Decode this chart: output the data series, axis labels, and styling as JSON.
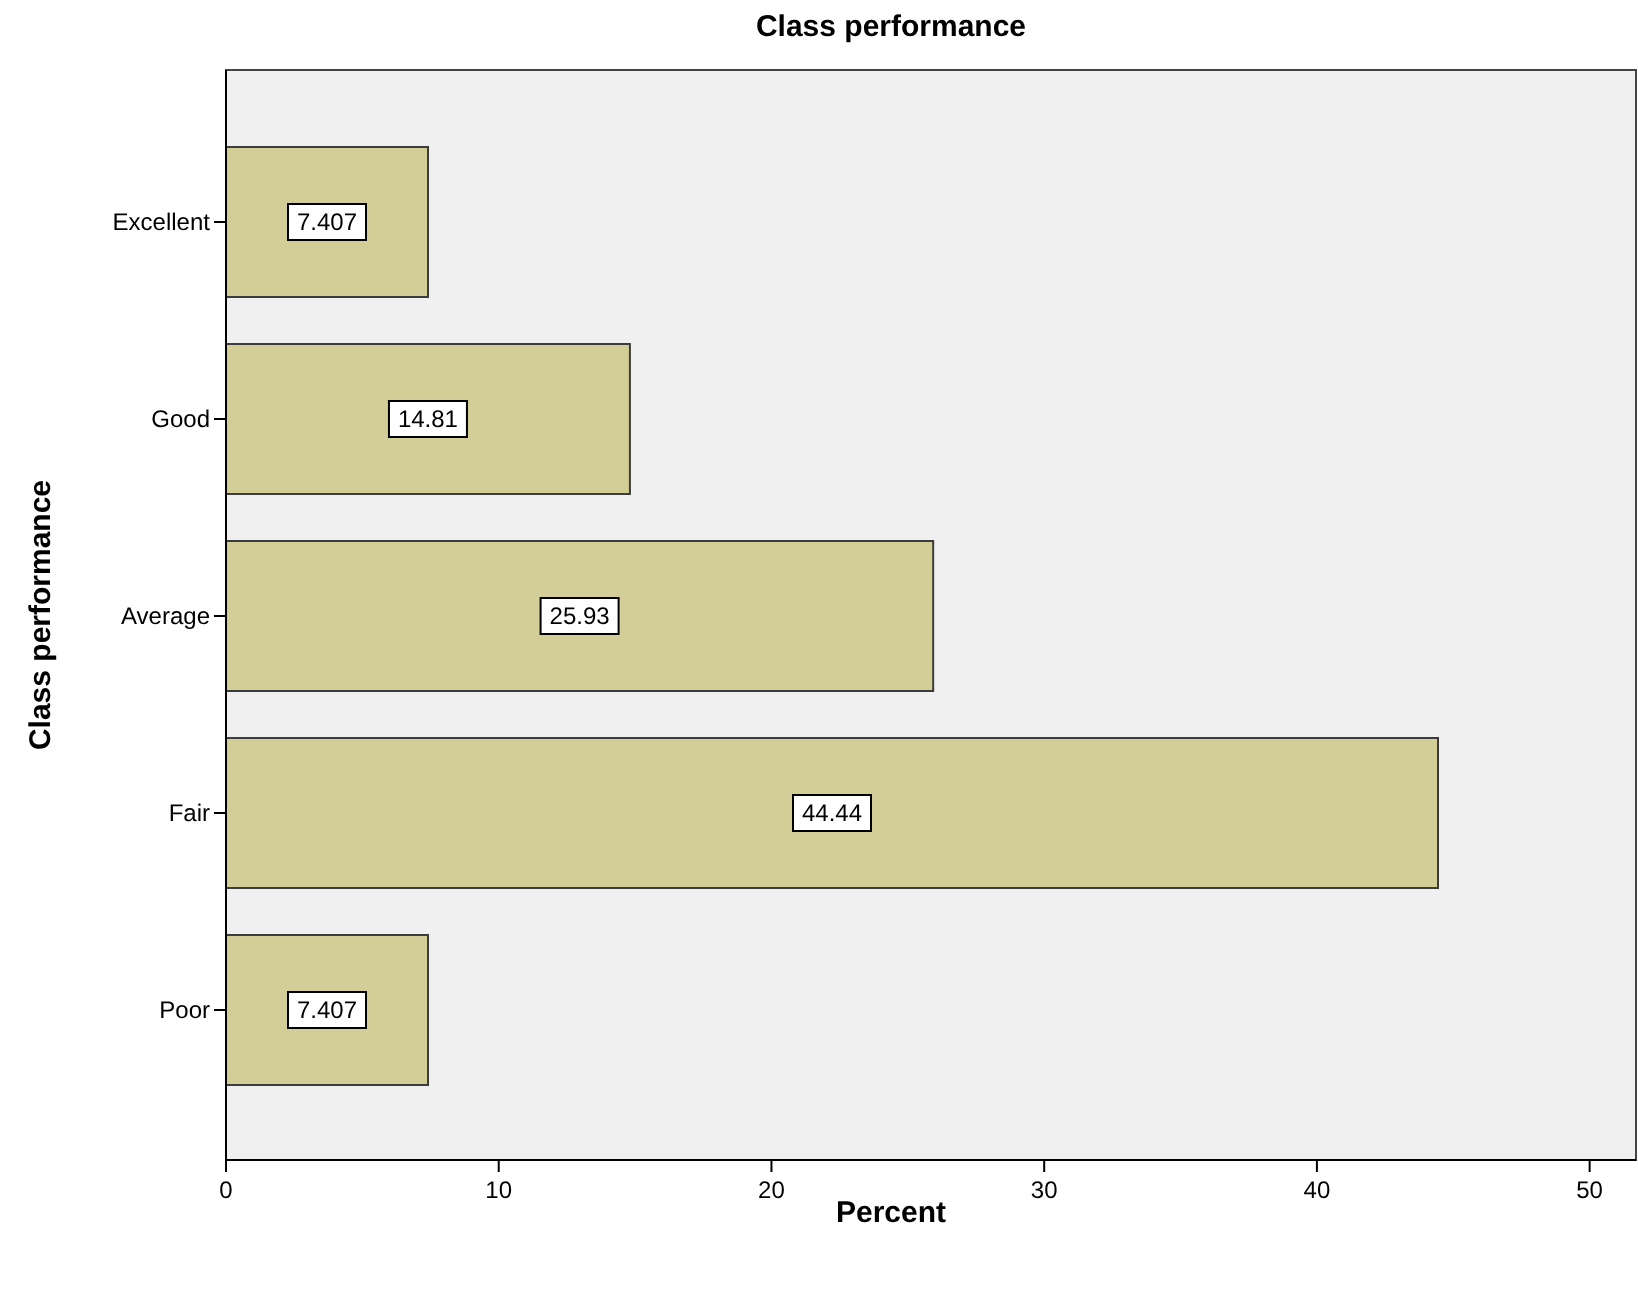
{
  "chart_data": {
    "type": "bar",
    "orientation": "horizontal",
    "title": "Class performance",
    "xlabel": "Percent",
    "ylabel": "Class performance",
    "categories": [
      "Excellent",
      "Good",
      "Average",
      "Fair",
      "Poor"
    ],
    "values": [
      7.407,
      14.81,
      25.93,
      44.44,
      7.407
    ],
    "color": "#d3ce97",
    "xlim": [
      0,
      51.7
    ],
    "xticks": [
      0,
      10,
      20,
      30,
      40,
      50
    ],
    "data_labels": true,
    "grid": false
  }
}
